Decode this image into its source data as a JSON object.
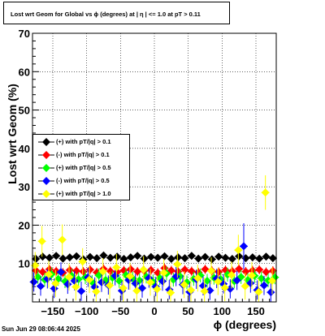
{
  "title": "Lost wrt Geom for Global vs ϕ (degrees) at |  η  | <= 1.0 at pT > 0.11",
  "timestamp": "Sun Jun 29 08:06:44 2025",
  "chart_data": {
    "type": "scatter",
    "xlabel": "ϕ (degrees)",
    "ylabel": "Lost wrt Geom (%)",
    "xlim": [
      -180,
      180
    ],
    "ylim": [
      0,
      70
    ],
    "xticks": [
      -150,
      -100,
      -50,
      0,
      50,
      100,
      150
    ],
    "xtick_labels": [
      "−150",
      "−100",
      "−50",
      "0",
      "50",
      "100",
      "150"
    ],
    "yticks": [
      10,
      20,
      30,
      40,
      50,
      60,
      70
    ],
    "ytick_labels": [
      "10",
      "20",
      "30",
      "40",
      "50",
      "60",
      "70"
    ],
    "grid": true,
    "legend_position": "left",
    "series": [
      {
        "name": "(+) with pT/|q| > 0.1",
        "color": "#000000",
        "x": [
          -175,
          -165,
          -155,
          -145,
          -135,
          -125,
          -115,
          -105,
          -95,
          -85,
          -75,
          -65,
          -55,
          -45,
          -35,
          -25,
          -15,
          -5,
          5,
          15,
          25,
          35,
          45,
          55,
          65,
          75,
          85,
          95,
          105,
          115,
          125,
          135,
          145,
          155,
          165,
          175
        ],
        "y": [
          11.2,
          11.8,
          11.5,
          12.0,
          11.3,
          11.6,
          11.9,
          11.1,
          11.7,
          11.4,
          12.1,
          11.5,
          11.8,
          11.2,
          11.6,
          12.0,
          11.3,
          11.7,
          11.5,
          11.9,
          11.2,
          11.6,
          11.4,
          12.0,
          11.3,
          11.7,
          11.1,
          11.8,
          11.5,
          11.2,
          11.9,
          11.4,
          11.6,
          11.3,
          11.8,
          11.4
        ],
        "err": [
          0.6,
          0.6,
          0.6,
          0.6,
          0.6,
          0.6,
          0.6,
          0.6,
          0.6,
          0.6,
          0.6,
          0.6,
          0.6,
          0.6,
          0.6,
          0.6,
          0.6,
          0.6,
          0.6,
          0.6,
          0.6,
          0.6,
          0.6,
          0.6,
          0.6,
          0.6,
          0.6,
          0.6,
          0.6,
          0.6,
          0.6,
          0.6,
          0.6,
          0.6,
          0.6,
          0.6
        ]
      },
      {
        "name": "(-) with pT/|q| > 0.1",
        "color": "#ff0000",
        "x": [
          -175,
          -165,
          -155,
          -145,
          -135,
          -125,
          -115,
          -105,
          -95,
          -85,
          -75,
          -65,
          -55,
          -45,
          -35,
          -25,
          -15,
          -5,
          5,
          15,
          25,
          35,
          45,
          55,
          65,
          75,
          85,
          95,
          105,
          115,
          125,
          135,
          145,
          155,
          165,
          175
        ],
        "y": [
          8.2,
          7.8,
          8.5,
          8.0,
          7.6,
          8.3,
          8.1,
          7.9,
          8.4,
          7.7,
          8.6,
          8.0,
          7.8,
          8.2,
          8.5,
          7.9,
          8.1,
          8.3,
          7.6,
          8.8,
          8.2,
          7.9,
          8.4,
          8.0,
          7.7,
          8.5,
          8.1,
          7.8,
          8.3,
          8.0,
          8.6,
          7.9,
          8.2,
          8.4,
          7.8,
          8.1
        ],
        "err": [
          1.2,
          1.2,
          1.2,
          1.2,
          1.2,
          1.2,
          1.2,
          1.2,
          1.2,
          1.2,
          1.2,
          1.2,
          1.2,
          1.2,
          1.2,
          1.2,
          1.2,
          1.2,
          1.2,
          1.2,
          1.2,
          1.2,
          1.2,
          1.2,
          1.2,
          1.2,
          1.2,
          1.2,
          1.2,
          1.2,
          1.2,
          1.2,
          1.2,
          1.2,
          1.2,
          1.2
        ]
      },
      {
        "name": "(+) with pT/|q| > 0.5",
        "color": "#00ff00",
        "x": [
          -172,
          -162,
          -152,
          -142,
          -132,
          -122,
          -112,
          -102,
          -92,
          -82,
          -72,
          -62,
          -52,
          -42,
          -32,
          -22,
          -12,
          -2,
          8,
          18,
          28,
          38,
          48,
          58,
          68,
          78,
          88,
          98,
          108,
          118,
          128,
          138,
          148,
          158,
          168,
          178
        ],
        "y": [
          6.5,
          5.8,
          7.2,
          6.0,
          5.4,
          6.8,
          5.9,
          6.4,
          5.2,
          6.9,
          5.7,
          6.3,
          5.5,
          7.0,
          6.1,
          5.6,
          6.6,
          5.3,
          6.2,
          7.4,
          5.8,
          6.7,
          5.1,
          6.0,
          6.9,
          5.5,
          6.3,
          5.9,
          7.1,
          5.4,
          6.5,
          5.7,
          6.8,
          6.1,
          5.6,
          6.4
        ],
        "err": [
          1.8,
          1.8,
          1.8,
          1.8,
          1.8,
          1.8,
          1.8,
          1.8,
          1.8,
          1.8,
          1.8,
          1.8,
          1.8,
          1.8,
          1.8,
          1.8,
          1.8,
          1.8,
          1.8,
          1.8,
          1.8,
          1.8,
          1.8,
          1.8,
          1.8,
          1.8,
          1.8,
          1.8,
          1.8,
          1.8,
          1.8,
          1.8,
          1.8,
          1.8,
          1.8,
          1.8
        ]
      },
      {
        "name": "(-) with pT/|q| > 0.5",
        "color": "#0000ff",
        "x": [
          -178,
          -168,
          -158,
          -148,
          -138,
          -128,
          -118,
          -108,
          -98,
          -88,
          -78,
          -68,
          -58,
          -48,
          -38,
          -28,
          -18,
          -8,
          2,
          12,
          22,
          32,
          42,
          52,
          62,
          72,
          82,
          92,
          102,
          112,
          122,
          132,
          142,
          152,
          162,
          172
        ],
        "y": [
          5.2,
          4.1,
          6.0,
          3.5,
          7.8,
          4.6,
          5.5,
          2.8,
          6.4,
          3.9,
          5.1,
          4.4,
          6.8,
          2.9,
          5.7,
          4.8,
          3.6,
          6.2,
          4.0,
          5.4,
          3.2,
          6.6,
          4.5,
          2.6,
          5.9,
          4.2,
          3.0,
          6.1,
          4.7,
          3.4,
          5.6,
          14.5,
          4.9,
          3.1,
          4.3,
          2.5
        ],
        "err": [
          2.5,
          2.5,
          2.5,
          2.5,
          2.5,
          2.5,
          2.5,
          2.5,
          2.5,
          2.5,
          2.5,
          2.5,
          2.5,
          2.5,
          2.5,
          2.5,
          2.5,
          2.5,
          2.5,
          2.5,
          2.5,
          2.5,
          2.5,
          2.5,
          2.5,
          2.5,
          2.5,
          2.5,
          2.5,
          2.5,
          2.5,
          6.0,
          2.5,
          2.5,
          2.5,
          2.5
        ]
      },
      {
        "name": "(+) with pT/|q| > 1.0",
        "color": "#ffff00",
        "x": [
          -176,
          -166,
          -156,
          -146,
          -136,
          -126,
          -116,
          -106,
          -96,
          -86,
          -76,
          -66,
          -56,
          -46,
          -36,
          -26,
          -16,
          -6,
          4,
          14,
          24,
          34,
          44,
          54,
          64,
          74,
          84,
          94,
          104,
          114,
          124,
          134,
          144,
          154,
          164,
          174
        ],
        "y": [
          9.5,
          15.8,
          7.2,
          4.8,
          16.2,
          6.5,
          3.9,
          10.5,
          5.8,
          2.7,
          7.9,
          4.3,
          9.0,
          3.6,
          6.7,
          2.9,
          8.4,
          5.1,
          3.3,
          7.6,
          2.4,
          9.8,
          4.5,
          3.1,
          6.2,
          2.8,
          8.1,
          5.3,
          3.7,
          7.0,
          13.5,
          4.1,
          6.9,
          2.6,
          28.5,
          5.5
        ],
        "err": [
          3.5,
          4.0,
          3.5,
          3.5,
          4.0,
          3.5,
          3.5,
          3.5,
          3.5,
          3.5,
          3.5,
          3.5,
          3.5,
          3.5,
          3.5,
          3.5,
          3.5,
          3.5,
          3.5,
          3.5,
          3.5,
          3.5,
          3.5,
          3.5,
          3.5,
          3.5,
          3.5,
          3.5,
          3.5,
          3.5,
          4.0,
          3.5,
          3.5,
          3.5,
          4.5,
          3.5
        ]
      }
    ]
  }
}
